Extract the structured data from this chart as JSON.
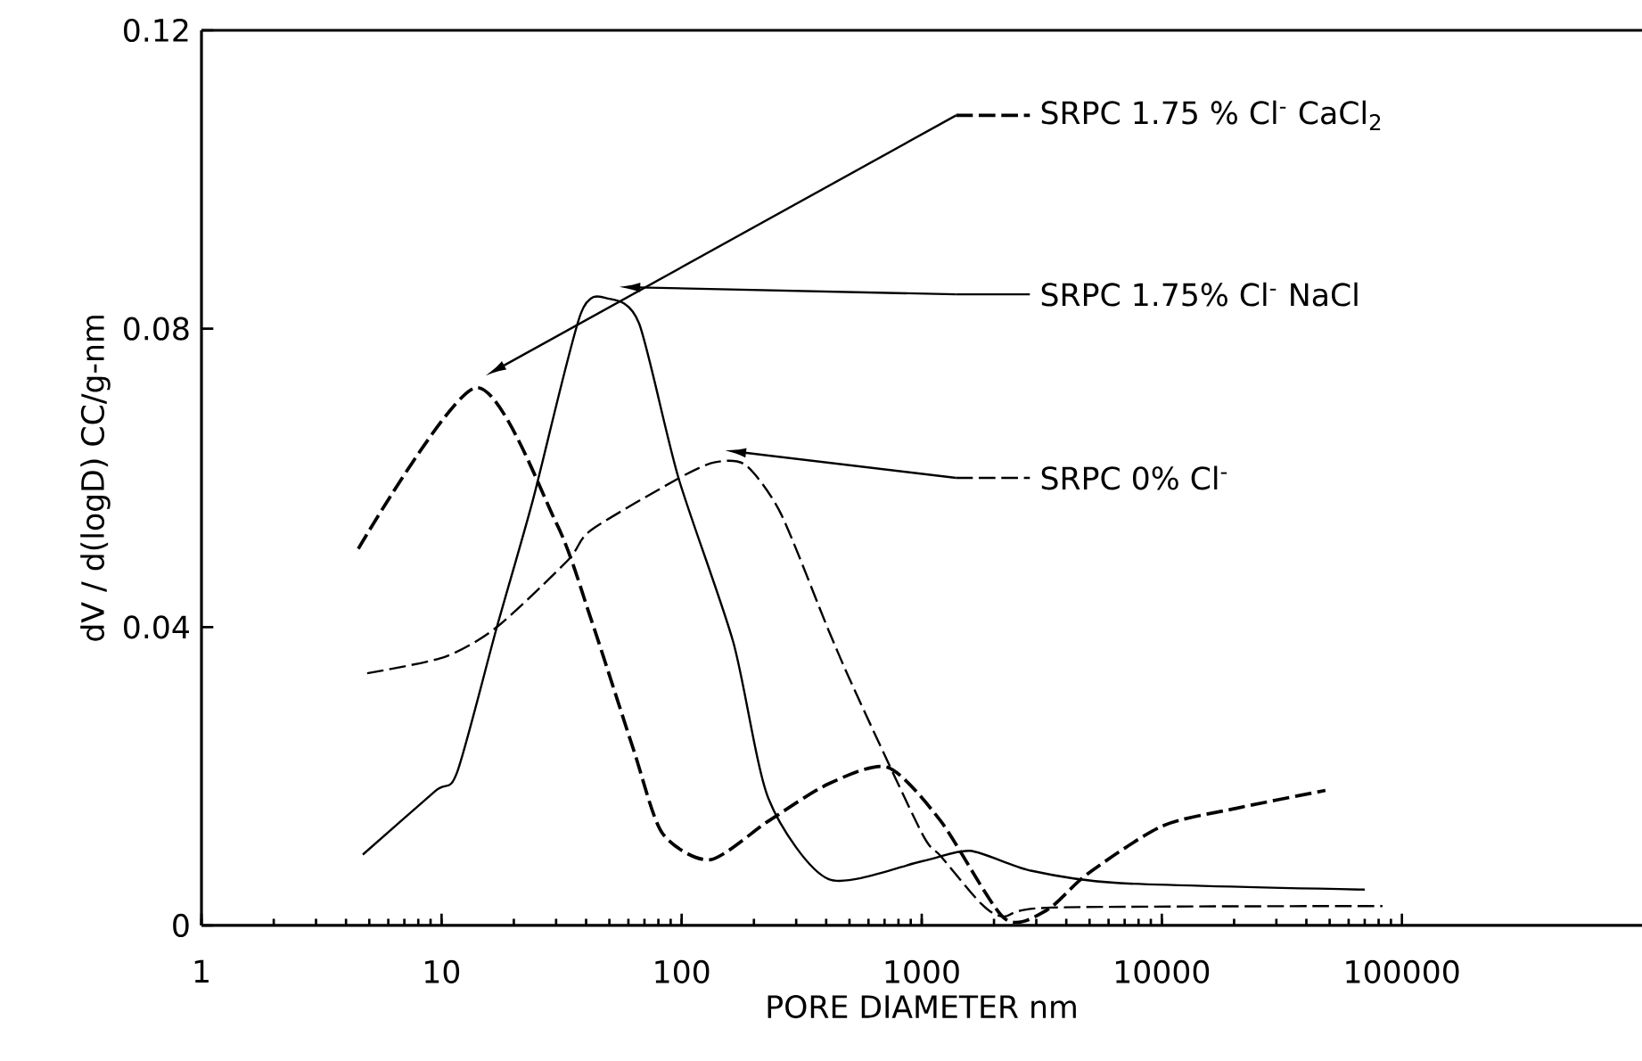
{
  "chart_data": {
    "type": "line",
    "xlabel": "PORE DIAMETER nm",
    "ylabel": "dV / d(logD)  CC/g-nm",
    "log": "x",
    "xlim": [
      1,
      1000000
    ],
    "ylim": [
      0,
      0.12
    ],
    "xticks": [
      1,
      10,
      100,
      1000,
      10000,
      100000
    ],
    "yticks": [
      0,
      0.04,
      0.08,
      0.12
    ],
    "legend": "top right",
    "marker": "none",
    "series": [
      {
        "name": "SRPC 1.75 % Cl$^{-}$ CaCl$_{2}$",
        "color": "#000000",
        "line_style": "dashed",
        "x": [
          4.5,
          13.9,
          30,
          42,
          63,
          83,
          131,
          230,
          410,
          720,
          1200,
          2200,
          3300,
          4900,
          10000,
          20400,
          48000
        ],
        "values": [
          0.0505,
          0.0721,
          0.054,
          0.041,
          0.0236,
          0.0124,
          0.0088,
          0.014,
          0.019,
          0.0212,
          0.014,
          0.001,
          0.002,
          0.0069,
          0.0133,
          0.0157,
          0.0181
        ]
      },
      {
        "name": "SRPC 1.75% Cl$^{-}$ NaCl",
        "color": "#000000",
        "line_style": "solid",
        "x": [
          4.7,
          9.4,
          11.6,
          17,
          24,
          38,
          50,
          66.5,
          97,
          164,
          230,
          410,
          1000,
          1590,
          2800,
          6500,
          70000
        ],
        "values": [
          0.0095,
          0.018,
          0.0205,
          0.04,
          0.057,
          0.082,
          0.084,
          0.0807,
          0.06,
          0.038,
          0.017,
          0.0062,
          0.0086,
          0.01,
          0.0074,
          0.0057,
          0.0048
        ]
      },
      {
        "name": "SRPC 0% Cl$^{-}$",
        "color": "#000000",
        "line_style": "dashed",
        "x": [
          4.9,
          10.3,
          17,
          33.7,
          42,
          98,
          138,
          185,
          259,
          410,
          540,
          1000,
          1200,
          1770,
          2200,
          3500,
          83000
        ],
        "values": [
          0.0338,
          0.036,
          0.04,
          0.049,
          0.053,
          0.06,
          0.0621,
          0.0617,
          0.0552,
          0.0395,
          0.0307,
          0.0124,
          0.0093,
          0.0029,
          0.0012,
          0.0024,
          0.0026
        ]
      }
    ]
  }
}
